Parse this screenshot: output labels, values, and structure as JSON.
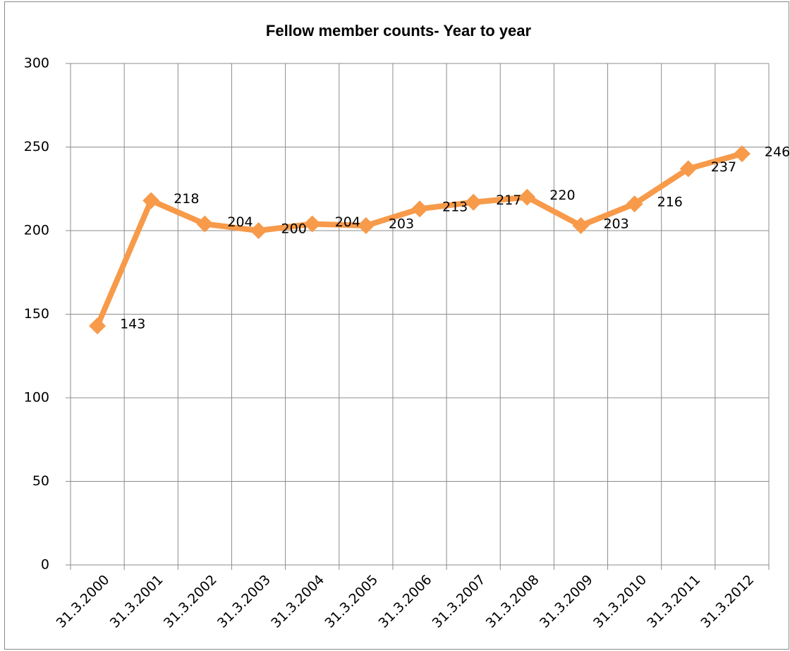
{
  "chart_data": {
    "type": "line",
    "title": "Fellow member counts- Year to year",
    "categories": [
      "31.3.2000",
      "31.3.2001",
      "31.3.2002",
      "31.3.2003",
      "31.3.2004",
      "31.3.2005",
      "31.3.2006",
      "31.3.2007",
      "31.3.2008",
      "31.3.2009",
      "31.3.2010",
      "31.3.2011",
      "31.3.2012"
    ],
    "values": [
      143,
      218,
      204,
      200,
      204,
      203,
      213,
      217,
      220,
      203,
      216,
      237,
      246
    ],
    "color": "#f79a4a",
    "ylim": [
      0,
      300
    ],
    "yticks": [
      0,
      50,
      100,
      150,
      200,
      250,
      300
    ],
    "grid": true
  }
}
